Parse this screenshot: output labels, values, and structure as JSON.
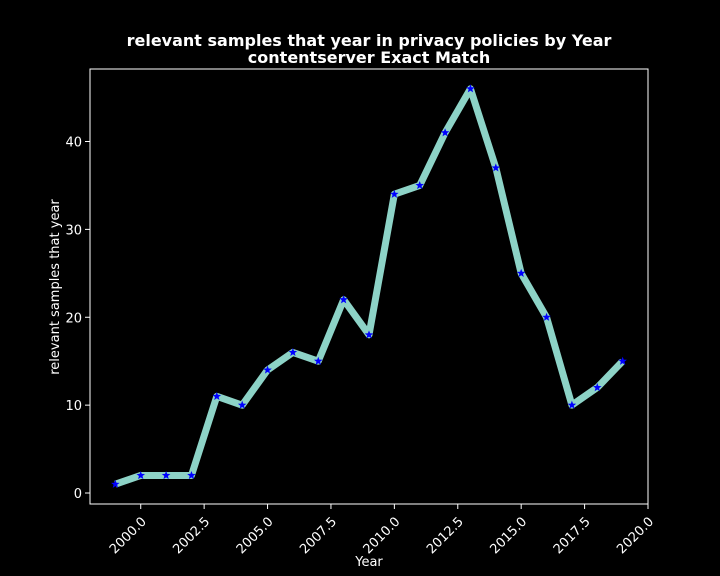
{
  "chart_data": {
    "type": "line",
    "title_line1": "relevant samples that year in privacy policies by Year",
    "title_line2": "contentserver Exact Match",
    "xlabel": "Year",
    "ylabel": "relevant samples that year",
    "x": [
      1999,
      2000,
      2001,
      2002,
      2003,
      2004,
      2005,
      2006,
      2007,
      2008,
      2009,
      2010,
      2011,
      2012,
      2013,
      2014,
      2015,
      2016,
      2017,
      2018,
      2019
    ],
    "series": [
      {
        "name": "relevant samples that year",
        "values": [
          1,
          2,
          2,
          2,
          11,
          10,
          14,
          16,
          15,
          22,
          18,
          34,
          35,
          41,
          46,
          37,
          25,
          20,
          10,
          12,
          15
        ]
      }
    ],
    "xlim": [
      1998.0,
      2020.0
    ],
    "ylim": [
      -1.25,
      48.25
    ],
    "xticks": [
      2000.0,
      2002.5,
      2005.0,
      2007.5,
      2010.0,
      2012.5,
      2015.0,
      2017.5,
      2020.0
    ],
    "xtick_labels": [
      "2000.0",
      "2002.5",
      "2005.0",
      "2007.5",
      "2010.0",
      "2012.5",
      "2015.0",
      "2017.5",
      "2020.0"
    ],
    "yticks": [
      0,
      10,
      20,
      30,
      40
    ],
    "ytick_labels": [
      "0",
      "10",
      "20",
      "30",
      "40"
    ],
    "line_color": "#8dd3c7",
    "marker_color": "#0000ff",
    "marker": "star",
    "background": "#000000",
    "foreground": "#ffffff",
    "grid": false,
    "legend": "none"
  }
}
